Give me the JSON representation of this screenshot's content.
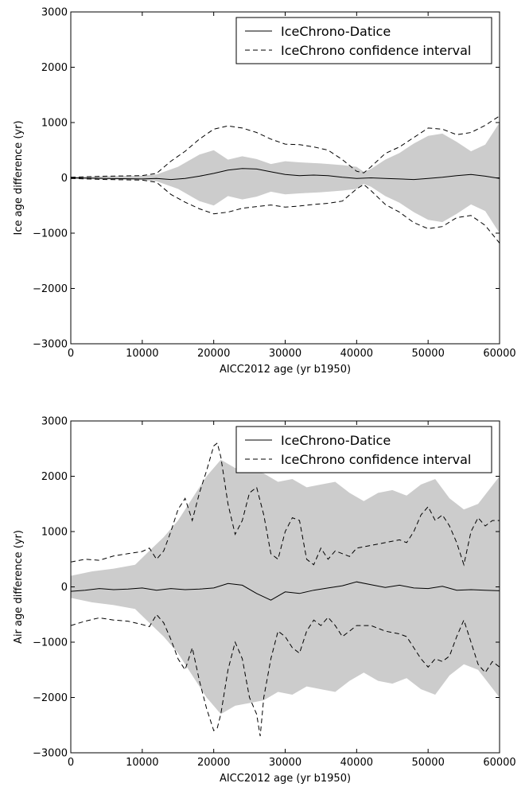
{
  "chart_data": [
    {
      "type": "line",
      "xlabel": "AICC2012 age (yr b1950)",
      "ylabel": "Ice age difference (yr)",
      "xlim": [
        0,
        60000
      ],
      "ylim": [
        -3000,
        3000
      ],
      "xticks": [
        0,
        10000,
        20000,
        30000,
        40000,
        50000,
        60000
      ],
      "yticks": [
        -3000,
        -2000,
        -1000,
        0,
        1000,
        2000,
        3000
      ],
      "xtick_labels": [
        "0",
        "10000",
        "20000",
        "30000",
        "40000",
        "50000",
        "60000"
      ],
      "ytick_labels": [
        "−3000",
        "−2000",
        "−1000",
        "0",
        "1000",
        "2000",
        "3000"
      ],
      "grid": false,
      "legend": {
        "position": "top-right",
        "entries": [
          "IceChrono-Datice",
          "IceChrono confidence interval"
        ]
      },
      "band": {
        "x": [
          0,
          5000,
          10000,
          12000,
          15000,
          18000,
          20000,
          22000,
          24000,
          26000,
          28000,
          30000,
          32000,
          35000,
          38000,
          40000,
          41000,
          42000,
          44000,
          46000,
          48000,
          50000,
          52000,
          54000,
          56000,
          58000,
          60000
        ],
        "upper": [
          20,
          30,
          40,
          60,
          200,
          420,
          500,
          330,
          390,
          340,
          250,
          300,
          280,
          260,
          230,
          200,
          110,
          160,
          330,
          450,
          620,
          760,
          800,
          650,
          480,
          600,
          1000
        ],
        "lower": [
          -20,
          -30,
          -40,
          -60,
          -200,
          -420,
          -500,
          -330,
          -390,
          -340,
          -250,
          -300,
          -280,
          -260,
          -230,
          -200,
          -110,
          -160,
          -330,
          -450,
          -620,
          -760,
          -800,
          -650,
          -480,
          -600,
          -1000
        ]
      },
      "series": [
        {
          "name": "IceChrono-Datice",
          "style": "solid",
          "x": [
            0,
            5000,
            10000,
            12000,
            14000,
            16000,
            18000,
            20000,
            22000,
            24000,
            26000,
            28000,
            30000,
            32000,
            34000,
            36000,
            38000,
            40000,
            42000,
            44000,
            46000,
            48000,
            50000,
            52000,
            54000,
            56000,
            58000,
            60000
          ],
          "y": [
            0,
            -10,
            -20,
            -10,
            -30,
            -10,
            30,
            80,
            140,
            170,
            160,
            110,
            60,
            40,
            50,
            40,
            10,
            -10,
            0,
            -10,
            -20,
            -30,
            -10,
            10,
            40,
            60,
            30,
            -10
          ]
        },
        {
          "name": "IceChrono confidence interval",
          "style": "dashed",
          "x": [
            0,
            5000,
            10000,
            12000,
            14000,
            16000,
            18000,
            20000,
            22000,
            24000,
            26000,
            28000,
            30000,
            32000,
            34000,
            36000,
            38000,
            40000,
            41000,
            42000,
            44000,
            46000,
            48000,
            50000,
            52000,
            54000,
            56000,
            58000,
            60000
          ],
          "y": [
            10,
            30,
            40,
            80,
            300,
            480,
            700,
            880,
            940,
            900,
            820,
            700,
            610,
            600,
            560,
            500,
            330,
            120,
            90,
            200,
            440,
            560,
            730,
            900,
            880,
            780,
            820,
            950,
            1120
          ]
        },
        {
          "name": "",
          "style": "dashed",
          "x": [
            0,
            5000,
            10000,
            12000,
            14000,
            16000,
            18000,
            20000,
            22000,
            24000,
            26000,
            28000,
            30000,
            32000,
            34000,
            36000,
            38000,
            40000,
            41000,
            42000,
            44000,
            46000,
            48000,
            50000,
            52000,
            54000,
            56000,
            58000,
            60000
          ],
          "y": [
            -10,
            -30,
            -40,
            -80,
            -300,
            -440,
            -560,
            -650,
            -620,
            -550,
            -520,
            -490,
            -530,
            -510,
            -480,
            -460,
            -420,
            -200,
            -120,
            -230,
            -480,
            -620,
            -810,
            -920,
            -880,
            -720,
            -680,
            -860,
            -1180
          ]
        }
      ]
    },
    {
      "type": "line",
      "xlabel": "AICC2012 age (yr b1950)",
      "ylabel": "Air age difference (yr)",
      "xlim": [
        0,
        60000
      ],
      "ylim": [
        -3000,
        3000
      ],
      "xticks": [
        0,
        10000,
        20000,
        30000,
        40000,
        50000,
        60000
      ],
      "yticks": [
        -3000,
        -2000,
        -1000,
        0,
        1000,
        2000,
        3000
      ],
      "xtick_labels": [
        "0",
        "10000",
        "20000",
        "30000",
        "40000",
        "50000",
        "60000"
      ],
      "ytick_labels": [
        "−3000",
        "−2000",
        "−1000",
        "0",
        "1000",
        "2000",
        "3000"
      ],
      "grid": false,
      "legend": {
        "position": "top-right",
        "entries": [
          "IceChrono-Datice",
          "IceChrono confidence interval"
        ]
      },
      "band": {
        "x": [
          0,
          3000,
          6000,
          9000,
          11000,
          13000,
          15000,
          17000,
          19000,
          21000,
          23000,
          25000,
          27000,
          29000,
          31000,
          33000,
          35000,
          37000,
          39000,
          41000,
          43000,
          45000,
          47000,
          49000,
          51000,
          53000,
          55000,
          57000,
          60000
        ],
        "upper": [
          200,
          280,
          330,
          400,
          650,
          900,
          1200,
          1600,
          2000,
          2300,
          2150,
          2100,
          2050,
          1900,
          1950,
          1800,
          1850,
          1900,
          1700,
          1550,
          1700,
          1750,
          1650,
          1850,
          1950,
          1600,
          1400,
          1500,
          2000
        ],
        "lower": [
          -200,
          -280,
          -330,
          -400,
          -650,
          -900,
          -1200,
          -1600,
          -2000,
          -2300,
          -2150,
          -2100,
          -2050,
          -1900,
          -1950,
          -1800,
          -1850,
          -1900,
          -1700,
          -1550,
          -1700,
          -1750,
          -1650,
          -1850,
          -1950,
          -1600,
          -1400,
          -1500,
          -2000
        ]
      },
      "series": [
        {
          "name": "IceChrono-Datice",
          "style": "solid",
          "x": [
            0,
            2000,
            4000,
            6000,
            8000,
            10000,
            12000,
            14000,
            16000,
            18000,
            20000,
            22000,
            24000,
            26000,
            28000,
            30000,
            32000,
            34000,
            36000,
            38000,
            40000,
            42000,
            44000,
            46000,
            48000,
            50000,
            52000,
            54000,
            56000,
            58000,
            60000
          ],
          "y": [
            -80,
            -60,
            -30,
            -50,
            -40,
            -20,
            -60,
            -30,
            -50,
            -40,
            -20,
            60,
            30,
            -120,
            -240,
            -90,
            -120,
            -60,
            -20,
            20,
            90,
            40,
            -10,
            30,
            -20,
            -30,
            10,
            -60,
            -50,
            -60,
            -70
          ]
        },
        {
          "name": "IceChrono confidence interval",
          "style": "dashed",
          "x": [
            0,
            2000,
            4000,
            6000,
            8000,
            10000,
            11000,
            12000,
            13000,
            14000,
            15000,
            16000,
            17000,
            18000,
            19000,
            20000,
            20500,
            21000,
            22000,
            23000,
            24000,
            25000,
            26000,
            27000,
            28000,
            29000,
            30000,
            31000,
            32000,
            33000,
            34000,
            35000,
            36000,
            37000,
            38000,
            39000,
            40000,
            42000,
            44000,
            46000,
            47000,
            48000,
            49000,
            50000,
            51000,
            52000,
            53000,
            54000,
            55000,
            56000,
            57000,
            58000,
            59000,
            60000
          ],
          "y": [
            450,
            500,
            480,
            560,
            600,
            640,
            700,
            500,
            650,
            1000,
            1400,
            1600,
            1200,
            1700,
            2100,
            2550,
            2600,
            2350,
            1500,
            950,
            1200,
            1700,
            1800,
            1300,
            600,
            500,
            1000,
            1250,
            1200,
            500,
            400,
            700,
            500,
            650,
            600,
            550,
            700,
            750,
            800,
            850,
            800,
            1000,
            1300,
            1450,
            1200,
            1300,
            1100,
            800,
            400,
            1000,
            1250,
            1100,
            1200,
            1200
          ]
        },
        {
          "name": "",
          "style": "dashed",
          "x": [
            0,
            2000,
            4000,
            6000,
            8000,
            10000,
            11000,
            12000,
            13000,
            14000,
            15000,
            16000,
            17000,
            18000,
            19000,
            20000,
            20500,
            21000,
            22000,
            23000,
            24000,
            25000,
            26000,
            26500,
            27000,
            28000,
            29000,
            30000,
            31000,
            32000,
            33000,
            34000,
            35000,
            36000,
            37000,
            38000,
            39000,
            40000,
            42000,
            44000,
            46000,
            47000,
            48000,
            49000,
            50000,
            51000,
            52000,
            53000,
            54000,
            55000,
            56000,
            57000,
            58000,
            59000,
            60000
          ],
          "y": [
            -700,
            -620,
            -560,
            -600,
            -620,
            -680,
            -720,
            -500,
            -650,
            -950,
            -1300,
            -1500,
            -1100,
            -1700,
            -2200,
            -2600,
            -2550,
            -2300,
            -1500,
            -1000,
            -1300,
            -2000,
            -2300,
            -2700,
            -2000,
            -1300,
            -800,
            -900,
            -1100,
            -1200,
            -800,
            -600,
            -700,
            -550,
            -700,
            -900,
            -800,
            -700,
            -700,
            -800,
            -850,
            -900,
            -1100,
            -1300,
            -1450,
            -1300,
            -1350,
            -1250,
            -900,
            -600,
            -1000,
            -1400,
            -1550,
            -1350,
            -1450
          ]
        }
      ]
    }
  ]
}
